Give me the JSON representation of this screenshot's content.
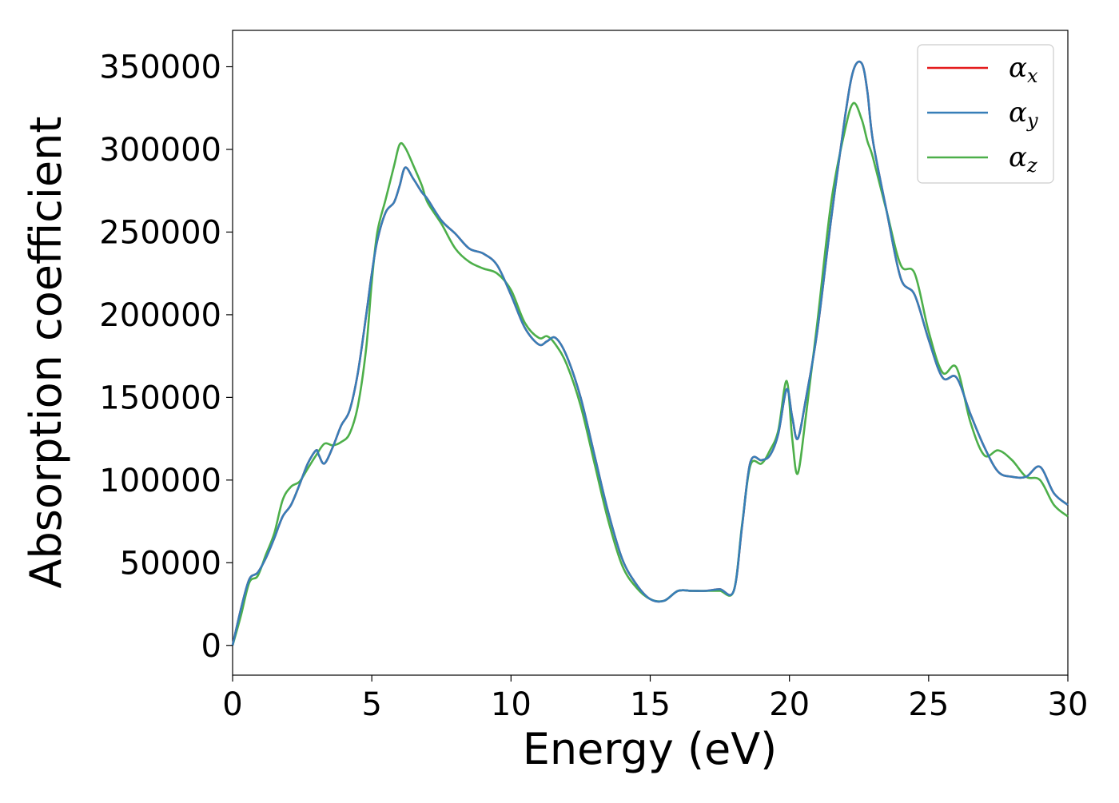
{
  "chart_data": {
    "type": "line",
    "xlabel": "Energy (eV)",
    "ylabel": "Absorption coefficient",
    "xlim": [
      0,
      30
    ],
    "ylim": [
      -18000,
      372000
    ],
    "x_ticks": [
      0,
      5,
      10,
      15,
      20,
      25,
      30
    ],
    "x_tick_labels": [
      "0",
      "5",
      "10",
      "15",
      "20",
      "25",
      "30"
    ],
    "y_ticks": [
      0,
      50000,
      100000,
      150000,
      200000,
      250000,
      300000,
      350000
    ],
    "y_tick_labels": [
      "0",
      "50000",
      "100000",
      "150000",
      "200000",
      "250000",
      "300000",
      "350000"
    ],
    "grid": false,
    "legend_position": "top-right",
    "series": [
      {
        "name": "α_x",
        "base": "α",
        "sub": "x",
        "color": "#e41a1c",
        "x": [
          0,
          0.3,
          0.6,
          0.9,
          1.2,
          1.5,
          1.8,
          2.1,
          2.4,
          2.7,
          3.0,
          3.1,
          3.3,
          3.6,
          3.9,
          4.2,
          4.5,
          4.8,
          5.0,
          5.2,
          5.5,
          5.8,
          6.0,
          6.2,
          6.5,
          6.8,
          7.0,
          7.5,
          8.0,
          8.5,
          9.0,
          9.5,
          10.0,
          10.5,
          11.0,
          11.3,
          11.6,
          12.0,
          12.5,
          13.0,
          13.5,
          14.0,
          14.5,
          15.0,
          15.5,
          16.0,
          16.5,
          17.0,
          17.5,
          18.0,
          18.3,
          18.6,
          19.0,
          19.3,
          19.6,
          19.9,
          20.1,
          20.3,
          20.6,
          21.0,
          21.5,
          22.0,
          22.3,
          22.6,
          22.8,
          23.0,
          23.5,
          24.0,
          24.5,
          25.0,
          25.5,
          26.0,
          26.5,
          27.0,
          27.5,
          28.0,
          28.5,
          29.0,
          29.5,
          30.0
        ],
        "values": [
          0,
          22000,
          40000,
          44000,
          53000,
          65000,
          78000,
          85000,
          97000,
          110000,
          118000,
          115000,
          110000,
          120000,
          133000,
          142000,
          165000,
          200000,
          225000,
          245000,
          262000,
          268000,
          278000,
          289000,
          282000,
          274000,
          270000,
          257000,
          249000,
          240000,
          237000,
          230000,
          212000,
          192000,
          182000,
          184000,
          186000,
          175000,
          150000,
          115000,
          80000,
          52000,
          37000,
          28000,
          27000,
          33000,
          33000,
          33000,
          34000,
          33000,
          72000,
          111000,
          112000,
          115000,
          128000,
          155000,
          138000,
          125000,
          150000,
          190000,
          258000,
          320000,
          348000,
          352000,
          335000,
          305000,
          262000,
          222000,
          212000,
          185000,
          162000,
          162000,
          140000,
          120000,
          105000,
          102000,
          102000,
          108000,
          92000,
          85000
        ]
      },
      {
        "name": "α_y",
        "base": "α",
        "sub": "y",
        "color": "#377eb8",
        "x": [
          0,
          0.3,
          0.6,
          0.9,
          1.2,
          1.5,
          1.8,
          2.1,
          2.4,
          2.7,
          3.0,
          3.1,
          3.3,
          3.6,
          3.9,
          4.2,
          4.5,
          4.8,
          5.0,
          5.2,
          5.5,
          5.8,
          6.0,
          6.2,
          6.5,
          6.8,
          7.0,
          7.5,
          8.0,
          8.5,
          9.0,
          9.5,
          10.0,
          10.5,
          11.0,
          11.3,
          11.6,
          12.0,
          12.5,
          13.0,
          13.5,
          14.0,
          14.5,
          15.0,
          15.5,
          16.0,
          16.5,
          17.0,
          17.5,
          18.0,
          18.3,
          18.6,
          19.0,
          19.3,
          19.6,
          19.9,
          20.1,
          20.3,
          20.6,
          21.0,
          21.5,
          22.0,
          22.3,
          22.6,
          22.8,
          23.0,
          23.5,
          24.0,
          24.5,
          25.0,
          25.5,
          26.0,
          26.5,
          27.0,
          27.5,
          28.0,
          28.5,
          29.0,
          29.5,
          30.0
        ],
        "values": [
          0,
          22000,
          40000,
          44000,
          53000,
          65000,
          78000,
          85000,
          97000,
          110000,
          118000,
          115000,
          110000,
          120000,
          133000,
          142000,
          165000,
          200000,
          225000,
          245000,
          262000,
          268000,
          278000,
          289000,
          282000,
          274000,
          270000,
          257000,
          249000,
          240000,
          237000,
          230000,
          212000,
          192000,
          182000,
          184000,
          186000,
          175000,
          150000,
          115000,
          80000,
          52000,
          37000,
          28000,
          27000,
          33000,
          33000,
          33000,
          34000,
          33000,
          72000,
          111000,
          112000,
          115000,
          128000,
          155000,
          138000,
          125000,
          150000,
          190000,
          258000,
          320000,
          348000,
          352000,
          335000,
          305000,
          262000,
          222000,
          212000,
          185000,
          162000,
          162000,
          140000,
          120000,
          105000,
          102000,
          102000,
          108000,
          92000,
          85000
        ]
      },
      {
        "name": "α_z",
        "base": "α",
        "sub": "z",
        "color": "#4daf4a",
        "x": [
          0,
          0.3,
          0.6,
          0.9,
          1.2,
          1.5,
          1.8,
          2.1,
          2.4,
          2.7,
          3.0,
          3.3,
          3.6,
          3.9,
          4.2,
          4.5,
          4.8,
          5.0,
          5.2,
          5.5,
          5.8,
          6.0,
          6.2,
          6.5,
          6.8,
          7.0,
          7.5,
          8.0,
          8.5,
          9.0,
          9.5,
          10.0,
          10.5,
          11.0,
          11.3,
          11.6,
          12.0,
          12.5,
          13.0,
          13.5,
          14.0,
          14.5,
          15.0,
          15.5,
          16.0,
          16.5,
          17.0,
          17.5,
          18.0,
          18.3,
          18.6,
          19.0,
          19.3,
          19.6,
          19.9,
          20.1,
          20.3,
          20.6,
          21.0,
          21.5,
          22.0,
          22.3,
          22.6,
          22.8,
          23.0,
          23.5,
          24.0,
          24.5,
          25.0,
          25.5,
          26.0,
          26.5,
          27.0,
          27.5,
          28.0,
          28.5,
          29.0,
          29.5,
          30.0
        ],
        "values": [
          0,
          18000,
          38000,
          42000,
          55000,
          68000,
          88000,
          96000,
          99000,
          107000,
          115000,
          122000,
          121000,
          123000,
          128000,
          145000,
          180000,
          220000,
          250000,
          270000,
          290000,
          303000,
          301000,
          290000,
          278000,
          268000,
          255000,
          240000,
          232000,
          228000,
          225000,
          215000,
          195000,
          186000,
          187000,
          182000,
          170000,
          145000,
          110000,
          75000,
          48000,
          35000,
          28000,
          27000,
          33000,
          33000,
          33000,
          33000,
          33000,
          73000,
          109000,
          110000,
          118000,
          130000,
          160000,
          125000,
          104000,
          140000,
          195000,
          268000,
          312000,
          328000,
          318000,
          305000,
          295000,
          262000,
          230000,
          225000,
          190000,
          165000,
          168000,
          135000,
          115000,
          118000,
          112000,
          102000,
          100000,
          85000,
          78000
        ]
      }
    ]
  }
}
